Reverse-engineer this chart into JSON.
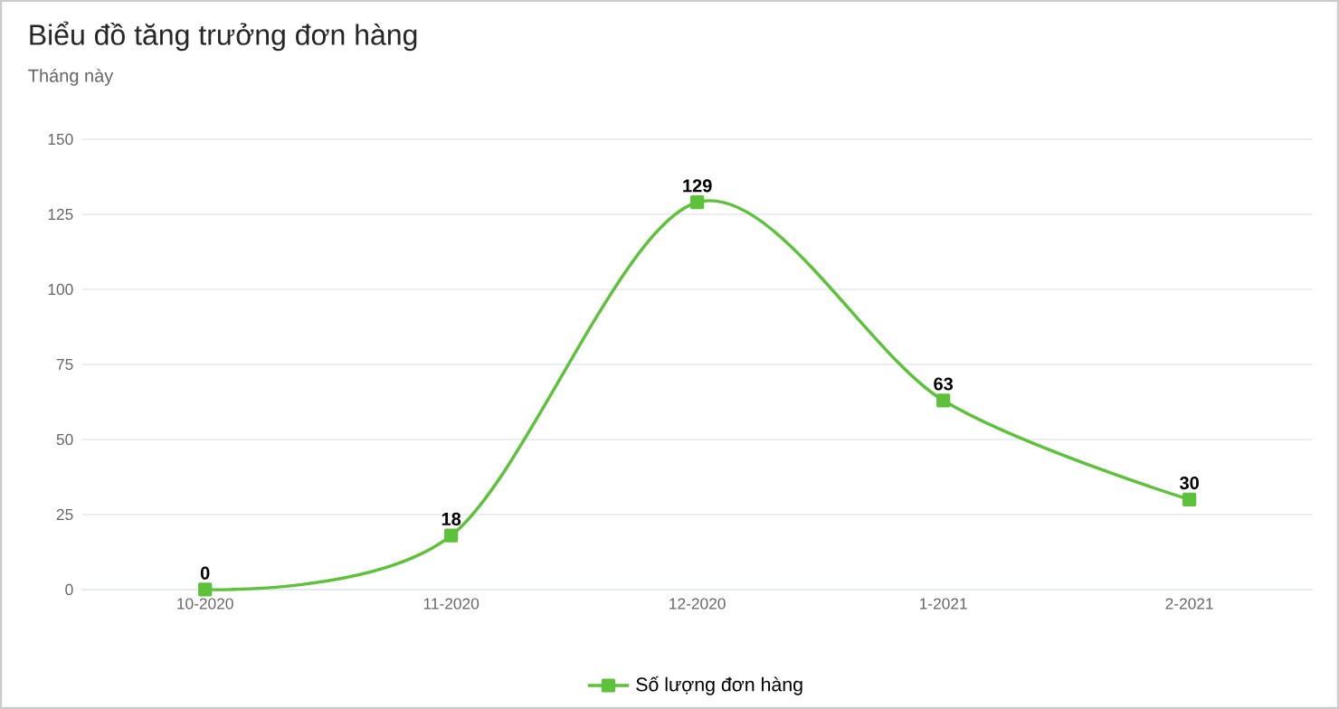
{
  "chart_data": {
    "type": "line",
    "title": "Biểu đồ tăng trưởng đơn hàng",
    "subtitle": "Tháng này",
    "categories": [
      "10-2020",
      "11-2020",
      "12-2020",
      "1-2021",
      "2-2021"
    ],
    "series": [
      {
        "name": "Số lượng đơn hàng",
        "color": "#5cc23a",
        "values": [
          0,
          18,
          129,
          63,
          30
        ]
      }
    ],
    "ylim": [
      0,
      150
    ],
    "yticks": [
      0,
      25,
      50,
      75,
      100,
      125,
      150
    ],
    "grid": "y",
    "legend": "bottom",
    "marker": "square",
    "line_style": "solid",
    "data_labels": true
  }
}
